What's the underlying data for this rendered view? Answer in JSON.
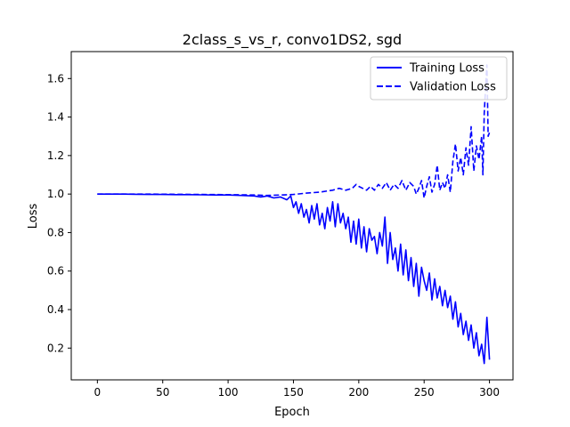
{
  "chart_data": {
    "type": "line",
    "title": "2class_s_vs_r, convo1DS2, sgd",
    "xlabel": "Epoch",
    "ylabel": "Loss",
    "xlim": [
      -20,
      318
    ],
    "ylim": [
      0.035,
      1.74
    ],
    "xticks": [
      0,
      50,
      100,
      150,
      200,
      250,
      300
    ],
    "yticks": [
      0.2,
      0.4,
      0.6,
      0.8,
      1.0,
      1.2,
      1.4,
      1.6
    ],
    "grid": false,
    "legend_position": "top-right",
    "series": [
      {
        "name": "Training Loss",
        "style": "solid",
        "color": "#0000ff",
        "points": [
          [
            0,
            1.0
          ],
          [
            10,
            1.0
          ],
          [
            20,
            1.0
          ],
          [
            30,
            0.999
          ],
          [
            40,
            0.998
          ],
          [
            50,
            0.998
          ],
          [
            60,
            0.997
          ],
          [
            70,
            0.997
          ],
          [
            80,
            0.996
          ],
          [
            90,
            0.995
          ],
          [
            100,
            0.995
          ],
          [
            110,
            0.993
          ],
          [
            120,
            0.99
          ],
          [
            125,
            0.985
          ],
          [
            130,
            0.99
          ],
          [
            135,
            0.98
          ],
          [
            140,
            0.985
          ],
          [
            145,
            0.97
          ],
          [
            148,
            0.99
          ],
          [
            150,
            0.93
          ],
          [
            152,
            0.96
          ],
          [
            154,
            0.9
          ],
          [
            156,
            0.95
          ],
          [
            158,
            0.88
          ],
          [
            160,
            0.92
          ],
          [
            162,
            0.85
          ],
          [
            164,
            0.94
          ],
          [
            166,
            0.87
          ],
          [
            168,
            0.95
          ],
          [
            170,
            0.84
          ],
          [
            172,
            0.9
          ],
          [
            174,
            0.82
          ],
          [
            176,
            0.93
          ],
          [
            178,
            0.86
          ],
          [
            180,
            0.96
          ],
          [
            182,
            0.83
          ],
          [
            184,
            0.95
          ],
          [
            186,
            0.85
          ],
          [
            188,
            0.9
          ],
          [
            190,
            0.82
          ],
          [
            192,
            0.88
          ],
          [
            194,
            0.75
          ],
          [
            196,
            0.86
          ],
          [
            198,
            0.74
          ],
          [
            200,
            0.87
          ],
          [
            202,
            0.72
          ],
          [
            204,
            0.83
          ],
          [
            206,
            0.7
          ],
          [
            208,
            0.82
          ],
          [
            210,
            0.76
          ],
          [
            212,
            0.78
          ],
          [
            214,
            0.69
          ],
          [
            216,
            0.8
          ],
          [
            218,
            0.73
          ],
          [
            220,
            0.88
          ],
          [
            222,
            0.64
          ],
          [
            224,
            0.8
          ],
          [
            226,
            0.66
          ],
          [
            228,
            0.72
          ],
          [
            230,
            0.6
          ],
          [
            232,
            0.74
          ],
          [
            234,
            0.58
          ],
          [
            236,
            0.71
          ],
          [
            238,
            0.55
          ],
          [
            240,
            0.67
          ],
          [
            242,
            0.52
          ],
          [
            244,
            0.64
          ],
          [
            246,
            0.47
          ],
          [
            248,
            0.62
          ],
          [
            250,
            0.55
          ],
          [
            252,
            0.5
          ],
          [
            254,
            0.59
          ],
          [
            256,
            0.45
          ],
          [
            258,
            0.56
          ],
          [
            260,
            0.46
          ],
          [
            262,
            0.52
          ],
          [
            264,
            0.42
          ],
          [
            266,
            0.5
          ],
          [
            268,
            0.41
          ],
          [
            270,
            0.47
          ],
          [
            272,
            0.35
          ],
          [
            274,
            0.44
          ],
          [
            276,
            0.31
          ],
          [
            278,
            0.38
          ],
          [
            280,
            0.27
          ],
          [
            282,
            0.34
          ],
          [
            284,
            0.24
          ],
          [
            286,
            0.32
          ],
          [
            288,
            0.2
          ],
          [
            290,
            0.28
          ],
          [
            292,
            0.16
          ],
          [
            294,
            0.22
          ],
          [
            296,
            0.12
          ],
          [
            298,
            0.36
          ],
          [
            300,
            0.14
          ]
        ]
      },
      {
        "name": "Validation Loss",
        "style": "dashed",
        "color": "#0000ff",
        "points": [
          [
            0,
            1.0
          ],
          [
            20,
            1.0
          ],
          [
            40,
            1.0
          ],
          [
            60,
            0.999
          ],
          [
            80,
            0.998
          ],
          [
            100,
            0.997
          ],
          [
            120,
            0.995
          ],
          [
            130,
            0.993
          ],
          [
            140,
            0.995
          ],
          [
            150,
            0.998
          ],
          [
            160,
            1.005
          ],
          [
            170,
            1.01
          ],
          [
            180,
            1.02
          ],
          [
            185,
            1.03
          ],
          [
            190,
            1.02
          ],
          [
            195,
            1.03
          ],
          [
            198,
            1.05
          ],
          [
            200,
            1.04
          ],
          [
            203,
            1.03
          ],
          [
            206,
            1.02
          ],
          [
            209,
            1.04
          ],
          [
            212,
            1.02
          ],
          [
            215,
            1.05
          ],
          [
            218,
            1.03
          ],
          [
            221,
            1.06
          ],
          [
            224,
            1.02
          ],
          [
            227,
            1.05
          ],
          [
            230,
            1.03
          ],
          [
            233,
            1.07
          ],
          [
            236,
            1.02
          ],
          [
            239,
            1.06
          ],
          [
            242,
            1.04
          ],
          [
            244,
            1.0
          ],
          [
            246,
            1.03
          ],
          [
            248,
            1.07
          ],
          [
            250,
            0.98
          ],
          [
            252,
            1.04
          ],
          [
            254,
            1.09
          ],
          [
            256,
            1.01
          ],
          [
            258,
            1.05
          ],
          [
            260,
            1.15
          ],
          [
            262,
            1.02
          ],
          [
            264,
            1.06
          ],
          [
            266,
            1.03
          ],
          [
            268,
            1.1
          ],
          [
            270,
            1.01
          ],
          [
            272,
            1.17
          ],
          [
            274,
            1.26
          ],
          [
            276,
            1.12
          ],
          [
            278,
            1.19
          ],
          [
            280,
            1.1
          ],
          [
            282,
            1.24
          ],
          [
            284,
            1.15
          ],
          [
            286,
            1.35
          ],
          [
            288,
            1.12
          ],
          [
            290,
            1.25
          ],
          [
            292,
            1.18
          ],
          [
            294,
            1.3
          ],
          [
            295,
            1.1
          ],
          [
            296,
            1.42
          ],
          [
            297,
            1.55
          ],
          [
            298,
            1.67
          ],
          [
            299,
            1.3
          ],
          [
            300,
            1.32
          ]
        ]
      }
    ]
  }
}
